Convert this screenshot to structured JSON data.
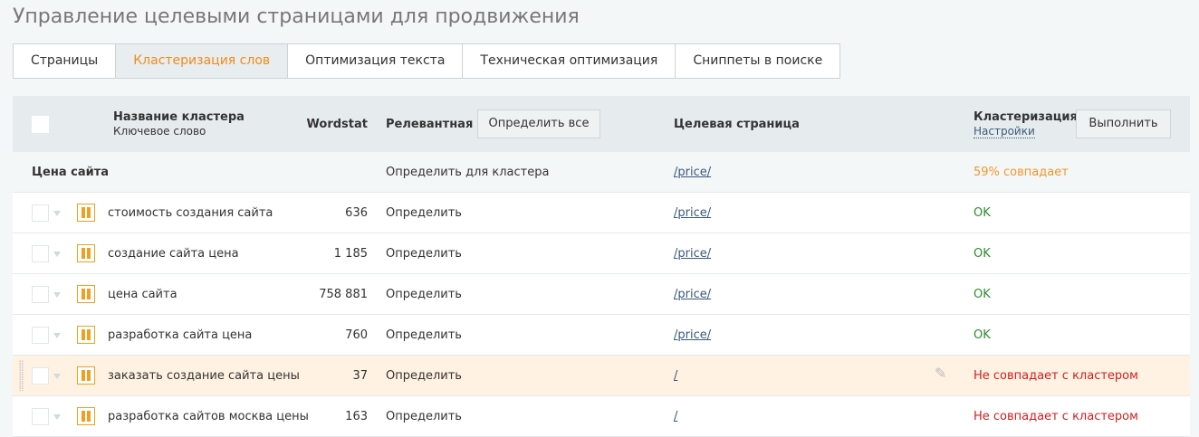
{
  "page_title": "Управление целевыми страницами для продвижения",
  "tabs": [
    {
      "label": "Страницы"
    },
    {
      "label": "Кластеризация слов",
      "active": true
    },
    {
      "label": "Оптимизация текста"
    },
    {
      "label": "Техническая оптимизация"
    },
    {
      "label": "Сниппеты в поиске"
    }
  ],
  "header": {
    "name": "Название кластера",
    "keyword": "Ключевое слово",
    "wordstat": "Wordstat",
    "relevant": "Релевантная",
    "determine_all": "Определить все",
    "target": "Целевая страница",
    "clustering": "Кластеризация",
    "settings": "Настройки",
    "execute": "Выполнить"
  },
  "cluster": {
    "name": "Цена сайта",
    "determine": "Определить для кластера",
    "url": "/price/",
    "status": "59% совпадает"
  },
  "rows": [
    {
      "keyword": "стоимость создания сайта",
      "wordstat": "636",
      "determine": "Определить",
      "url": "/price/",
      "status": "OK"
    },
    {
      "keyword": "создание сайта цена",
      "wordstat": "1 185",
      "determine": "Определить",
      "url": "/price/",
      "status": "OK"
    },
    {
      "keyword": "цена сайта",
      "wordstat": "758 881",
      "determine": "Определить",
      "url": "/price/",
      "status": "OK"
    },
    {
      "keyword": "разработка сайта цена",
      "wordstat": "760",
      "determine": "Определить",
      "url": "/price/",
      "status": "OK"
    },
    {
      "keyword": "заказать создание сайта цены",
      "wordstat": "37",
      "determine": "Определить",
      "url": "/",
      "status": "Не совпадает с кластером"
    },
    {
      "keyword": "разработка сайтов москва цены",
      "wordstat": "163",
      "determine": "Определить",
      "url": "/",
      "status": "Не совпадает с кластером"
    }
  ],
  "colors": {
    "accent": "#f08c1a",
    "ok": "#2e8b2e",
    "mismatch": "#d21e1e",
    "partial": "#f0962a",
    "highlight_row": "#fff2e3"
  }
}
